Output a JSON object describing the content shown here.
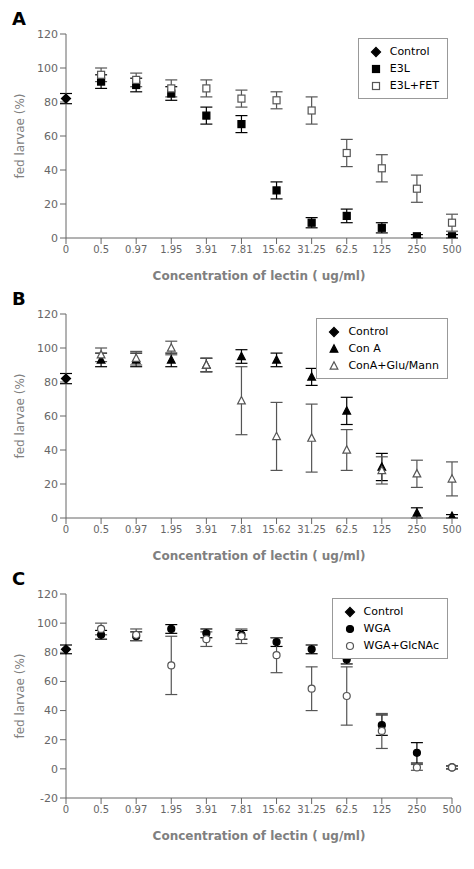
{
  "chart_data": [
    {
      "type": "scatter",
      "title": "A",
      "x_label": "Concentration of lectin ( ug/ml)",
      "y_label": "fed larvae (%)",
      "categories": [
        "0",
        "0.5",
        "0.97",
        "1.95",
        "3.91",
        "7.81",
        "15.62",
        "31.25",
        "62.5",
        "125",
        "250",
        "500"
      ],
      "ylim": [
        0,
        120
      ],
      "yticks": [
        0,
        20,
        40,
        60,
        80,
        100,
        120
      ],
      "grid": false,
      "legend": "upper right",
      "series": [
        {
          "name": "Control",
          "color": "#000000",
          "marker": "diamond",
          "values": [
            82,
            null,
            null,
            null,
            null,
            null,
            null,
            null,
            null,
            null,
            null,
            null
          ],
          "errors": [
            3,
            null,
            null,
            null,
            null,
            null,
            null,
            null,
            null,
            null,
            null,
            null
          ]
        },
        {
          "name": "E3L",
          "color": "#000000",
          "marker": "square",
          "values": [
            null,
            92,
            90,
            85,
            72,
            67,
            28,
            9,
            13,
            6,
            1,
            1
          ],
          "errors": [
            null,
            4,
            4,
            4,
            5,
            5,
            5,
            3,
            4,
            3,
            1,
            1
          ]
        },
        {
          "name": "E3L+FET",
          "color": "#555555",
          "marker": "square-open",
          "values": [
            null,
            96,
            93,
            88,
            88,
            82,
            81,
            75,
            50,
            41,
            29,
            9
          ],
          "errors": [
            null,
            4,
            4,
            5,
            5,
            5,
            5,
            8,
            8,
            8,
            8,
            5
          ]
        }
      ]
    },
    {
      "type": "scatter",
      "title": "B",
      "x_label": "Concentration of lectin ( ug/ml)",
      "y_label": "fed larvae (%)",
      "categories": [
        "0",
        "0.5",
        "0.97",
        "1.95",
        "3.91",
        "7.81",
        "15.62",
        "31.25",
        "62.5",
        "125",
        "250",
        "500"
      ],
      "ylim": [
        0,
        120
      ],
      "yticks": [
        0,
        20,
        40,
        60,
        80,
        100,
        120
      ],
      "grid": false,
      "legend": "upper right",
      "series": [
        {
          "name": "Control",
          "color": "#000000",
          "marker": "diamond",
          "values": [
            82,
            null,
            null,
            null,
            null,
            null,
            null,
            null,
            null,
            null,
            null,
            null
          ],
          "errors": [
            3,
            null,
            null,
            null,
            null,
            null,
            null,
            null,
            null,
            null,
            null,
            null
          ]
        },
        {
          "name": "Con A",
          "color": "#000000",
          "marker": "triangle",
          "values": [
            null,
            93,
            93,
            93,
            90,
            95,
            93,
            83,
            63,
            30,
            3,
            1
          ],
          "errors": [
            null,
            4,
            4,
            4,
            4,
            4,
            4,
            5,
            8,
            8,
            3,
            1
          ]
        },
        {
          "name": "ConA+Glu/Mann",
          "color": "#555555",
          "marker": "triangle-open",
          "values": [
            null,
            96,
            94,
            100,
            90,
            69,
            48,
            47,
            40,
            28,
            26,
            23
          ],
          "errors": [
            null,
            4,
            4,
            4,
            4,
            20,
            20,
            20,
            12,
            8,
            8,
            10
          ]
        }
      ]
    },
    {
      "type": "scatter",
      "title": "C",
      "x_label": "Concentration of lectin ( ug/ml)",
      "y_label": "fed larvae (%)",
      "categories": [
        "0",
        "0.5",
        "0.97",
        "1.95",
        "3.91",
        "7.81",
        "15.62",
        "31.25",
        "62.5",
        "125",
        "250",
        "500"
      ],
      "ylim": [
        -20,
        120
      ],
      "yticks": [
        -20,
        0,
        20,
        40,
        60,
        80,
        100,
        120
      ],
      "grid": false,
      "legend": "upper right",
      "series": [
        {
          "name": "Control",
          "color": "#000000",
          "marker": "diamond",
          "values": [
            82,
            null,
            null,
            null,
            null,
            null,
            null,
            null,
            null,
            null,
            null,
            null
          ],
          "errors": [
            3,
            null,
            null,
            null,
            null,
            null,
            null,
            null,
            null,
            null,
            null,
            null
          ]
        },
        {
          "name": "WGA",
          "color": "#000000",
          "marker": "circle",
          "values": [
            null,
            92,
            91,
            96,
            93,
            92,
            87,
            82,
            75,
            30,
            11,
            1
          ],
          "errors": [
            null,
            3,
            3,
            3,
            3,
            3,
            3,
            3,
            3,
            7,
            7,
            1
          ]
        },
        {
          "name": "WGA+GlcNAc",
          "color": "#555555",
          "marker": "circle-open",
          "values": [
            null,
            96,
            92,
            71,
            89,
            91,
            78,
            55,
            50,
            26,
            1,
            1
          ],
          "errors": [
            null,
            4,
            4,
            20,
            5,
            5,
            12,
            15,
            20,
            12,
            2,
            1
          ]
        }
      ]
    }
  ]
}
